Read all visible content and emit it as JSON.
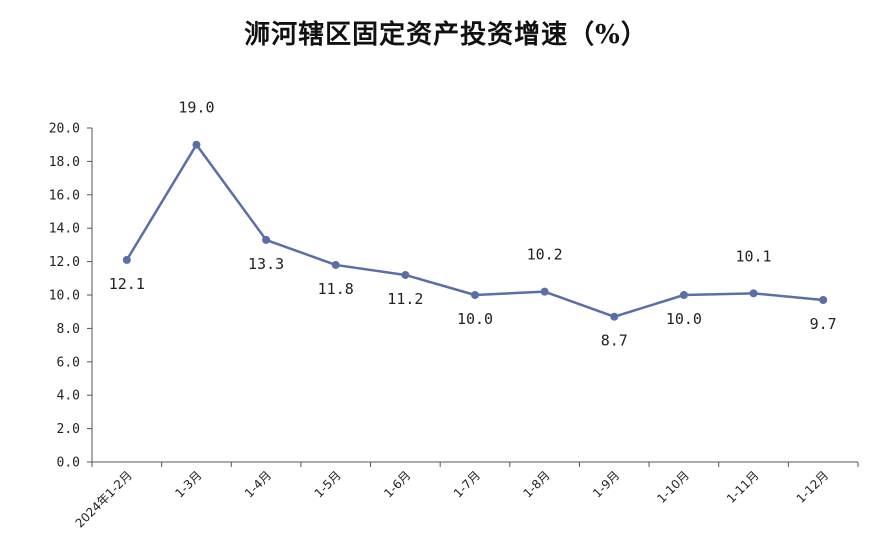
{
  "chart_data": {
    "type": "line",
    "title": "浉河辖区固定资产投资增速（%）",
    "xlabel": "",
    "ylabel": "",
    "categories": [
      "2024年1-2月",
      "1-3月",
      "1-4月",
      "1-5月",
      "1-6月",
      "1-7月",
      "1-8月",
      "1-9月",
      "1-10月",
      "1-11月",
      "1-12月"
    ],
    "series": [
      {
        "values": [
          12.1,
          19.0,
          13.3,
          11.8,
          11.2,
          10.0,
          10.2,
          8.7,
          10.0,
          10.1,
          9.7
        ],
        "data_labels": [
          "12.1",
          "19.0",
          "13.3",
          "11.8",
          "11.2",
          "10.0",
          "10.2",
          "8.7",
          "10.0",
          "10.1",
          "9.7"
        ]
      }
    ],
    "ylim": [
      0,
      20
    ],
    "yticks": [
      "0.0",
      "2.0",
      "4.0",
      "6.0",
      "8.0",
      "10.0",
      "12.0",
      "14.0",
      "16.0",
      "18.0",
      "20.0"
    ],
    "grid": false,
    "legend": "none",
    "line_color": "#5b6fa6"
  }
}
